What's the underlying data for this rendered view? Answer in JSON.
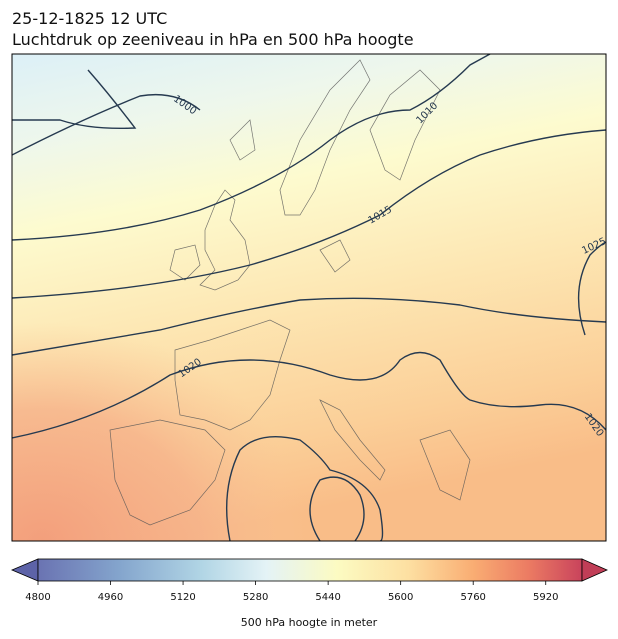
{
  "header": {
    "title_lines": [
      "25-12-1825 12 UTC",
      "Luchtdruk op zeeniveau in hPa en 500 hPa hoogte"
    ]
  },
  "map": {
    "contour_labels": [
      "1000",
      "1010",
      "1015",
      "1020",
      "1025",
      "1020"
    ]
  },
  "colorbar": {
    "lim": [
      4800,
      6000
    ],
    "ticks": [
      4800,
      4960,
      5120,
      5280,
      5440,
      5600,
      5760,
      5920
    ],
    "label": "500 hPa hoogte in meter"
  }
}
